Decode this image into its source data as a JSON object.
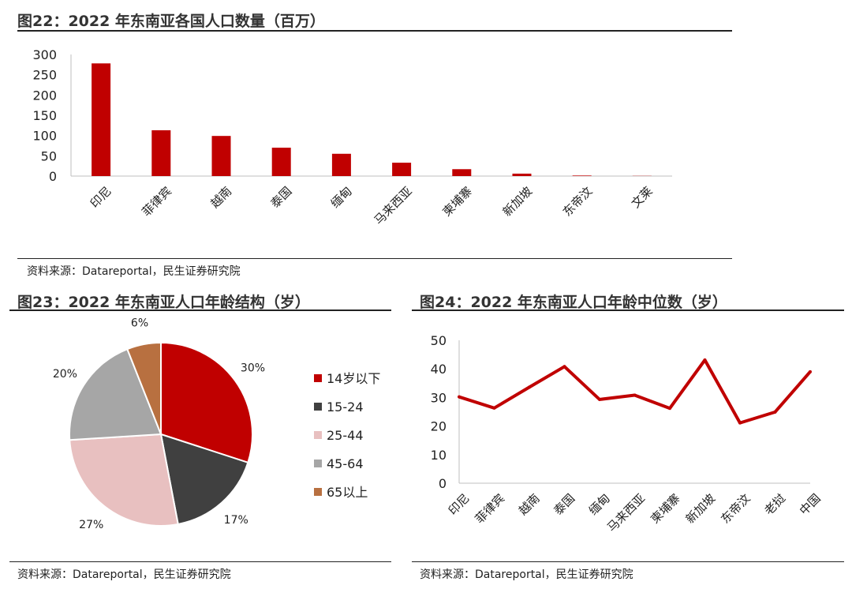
{
  "fig22": {
    "title": "图22：2022 年东南亚各国人口数量（百万）",
    "source": "资料来源：Datareportal，民生证券研究院"
  },
  "fig23": {
    "title": "图23：2022 年东南亚人口年龄结构（岁）",
    "source": "资料来源：Datareportal，民生证券研究院"
  },
  "fig24": {
    "title": "图24：2022 年东南亚人口年龄中位数（岁）",
    "source": "资料来源：Datareportal，民生证券研究院"
  },
  "chart_data": [
    {
      "type": "bar",
      "title": "图22：2022 年东南亚各国人口数量（百万）",
      "categories": [
        "印尼",
        "菲律宾",
        "越南",
        "泰国",
        "缅甸",
        "马来西亚",
        "柬埔寨",
        "新加坡",
        "东帝汶",
        "文莱"
      ],
      "values": [
        278,
        113,
        99,
        70,
        55,
        33,
        17,
        6,
        1.3,
        0.45
      ],
      "ylim": [
        0,
        300
      ],
      "yticks": [
        0,
        50,
        100,
        150,
        200,
        250,
        300
      ],
      "color": "#c00000",
      "grid": false
    },
    {
      "type": "pie",
      "title": "图23：2022 年东南亚人口年龄结构（岁）",
      "labels": [
        "14岁以下",
        "15-24",
        "25-44",
        "45-64",
        "65以上"
      ],
      "values": [
        30,
        17,
        27,
        20,
        6
      ],
      "value_labels": [
        "30%",
        "17%",
        "27%",
        "20%",
        "6%"
      ],
      "colors": [
        "#c00000",
        "#404040",
        "#e8c0c0",
        "#a6a6a6",
        "#b87040"
      ],
      "legend": "right"
    },
    {
      "type": "line",
      "title": "图24：2022 年东南亚人口年龄中位数（岁）",
      "categories": [
        "印尼",
        "菲律宾",
        "越南",
        "泰国",
        "缅甸",
        "马来西亚",
        "柬埔寨",
        "新加坡",
        "东帝汶",
        "老挝",
        "中国"
      ],
      "values": [
        30.2,
        26.3,
        33.6,
        40.8,
        29.3,
        30.8,
        26.2,
        43.1,
        21.1,
        24.9,
        39.0
      ],
      "ylim": [
        0,
        50
      ],
      "yticks": [
        0,
        10,
        20,
        30,
        40,
        50
      ],
      "color": "#c00000",
      "grid": false
    }
  ]
}
